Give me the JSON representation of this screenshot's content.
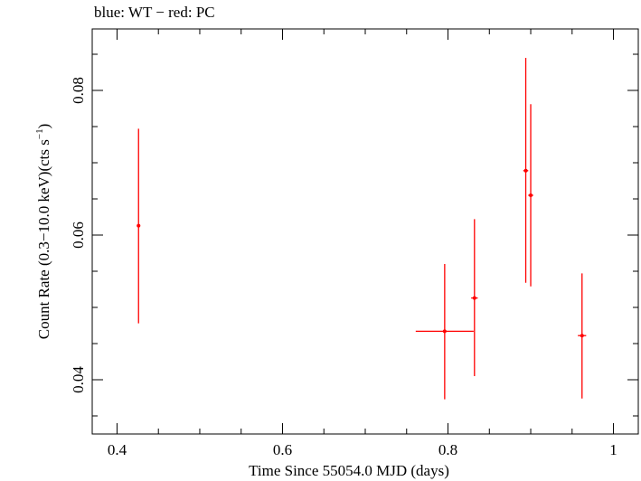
{
  "chart_data": {
    "type": "scatter",
    "title": "blue: WT − red: PC",
    "xlabel": "Time Since 55054.0 MJD (days)",
    "ylabel": "Count Rate (0.3−10.0 keV)(cts s",
    "ylabel_sup": "−1",
    "ylabel_end": ")",
    "xlim": [
      0.37,
      1.03
    ],
    "ylim": [
      0.0325,
      0.0885
    ],
    "xticks": [
      0.4,
      0.6,
      0.8,
      1
    ],
    "xtick_labels": [
      "0.4",
      "0.6",
      "0.8",
      "1"
    ],
    "yticks": [
      0.04,
      0.06,
      0.08
    ],
    "ytick_labels": [
      "0.04",
      "0.06",
      "0.08"
    ],
    "grid": false,
    "series": [
      {
        "color": "#ff0000",
        "points": [
          {
            "x": 0.426,
            "y": 0.0613,
            "xerr": 0.002,
            "ylo": 0.0478,
            "yhi": 0.0747
          },
          {
            "x": 0.796,
            "y": 0.0467,
            "xerr": 0.035,
            "ylo": 0.0373,
            "yhi": 0.056
          },
          {
            "x": 0.832,
            "y": 0.0513,
            "xerr": 0.004,
            "ylo": 0.0405,
            "yhi": 0.0622
          },
          {
            "x": 0.894,
            "y": 0.0689,
            "xerr": 0.003,
            "ylo": 0.0534,
            "yhi": 0.0845
          },
          {
            "x": 0.9,
            "y": 0.0655,
            "xerr": 0.003,
            "ylo": 0.0529,
            "yhi": 0.0781
          },
          {
            "x": 0.962,
            "y": 0.0461,
            "xerr": 0.005,
            "ylo": 0.0374,
            "yhi": 0.0547
          }
        ]
      }
    ]
  }
}
